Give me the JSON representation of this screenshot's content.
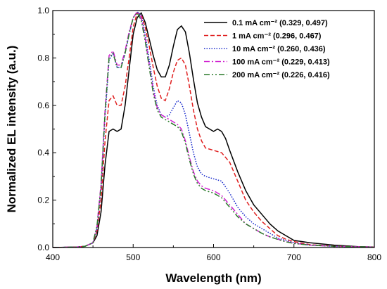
{
  "chart_data": {
    "type": "line",
    "xlabel": "Wavelength (nm)",
    "ylabel": "Normalized EL intensity (a.u.)",
    "xlim": [
      400,
      800
    ],
    "ylim": [
      0,
      1.0
    ],
    "xticks": [
      "400",
      "500",
      "600",
      "700",
      "800"
    ],
    "yticks": [
      "0.0",
      "0.2",
      "0.4",
      "0.6",
      "0.8",
      "1.0"
    ],
    "grid": false,
    "legend_position": "top-right",
    "series": [
      {
        "name": "0.1  mA cm⁻² (0.329, 0.497)",
        "color": "#000000",
        "dash": "solid",
        "points": [
          [
            400,
            0
          ],
          [
            430,
            0.002
          ],
          [
            440,
            0.005
          ],
          [
            450,
            0.02
          ],
          [
            455,
            0.05
          ],
          [
            460,
            0.15
          ],
          [
            465,
            0.35
          ],
          [
            470,
            0.49
          ],
          [
            475,
            0.5
          ],
          [
            480,
            0.49
          ],
          [
            485,
            0.5
          ],
          [
            490,
            0.6
          ],
          [
            495,
            0.75
          ],
          [
            500,
            0.9
          ],
          [
            505,
            0.97
          ],
          [
            510,
            0.99
          ],
          [
            515,
            0.95
          ],
          [
            520,
            0.88
          ],
          [
            525,
            0.81
          ],
          [
            530,
            0.75
          ],
          [
            535,
            0.72
          ],
          [
            540,
            0.72
          ],
          [
            545,
            0.77
          ],
          [
            550,
            0.85
          ],
          [
            555,
            0.92
          ],
          [
            560,
            0.935
          ],
          [
            565,
            0.91
          ],
          [
            570,
            0.82
          ],
          [
            575,
            0.71
          ],
          [
            580,
            0.61
          ],
          [
            585,
            0.55
          ],
          [
            590,
            0.51
          ],
          [
            600,
            0.49
          ],
          [
            605,
            0.5
          ],
          [
            610,
            0.49
          ],
          [
            615,
            0.46
          ],
          [
            620,
            0.41
          ],
          [
            630,
            0.32
          ],
          [
            640,
            0.24
          ],
          [
            650,
            0.18
          ],
          [
            660,
            0.14
          ],
          [
            670,
            0.1
          ],
          [
            680,
            0.07
          ],
          [
            690,
            0.05
          ],
          [
            700,
            0.03
          ],
          [
            720,
            0.02
          ],
          [
            750,
            0.01
          ],
          [
            780,
            0.004
          ],
          [
            800,
            0.002
          ]
        ]
      },
      {
        "name": "1   mA cm⁻² (0.296, 0.467)",
        "color": "#e02020",
        "dash": "dashed",
        "points": [
          [
            400,
            0
          ],
          [
            430,
            0.002
          ],
          [
            440,
            0.005
          ],
          [
            450,
            0.02
          ],
          [
            455,
            0.07
          ],
          [
            460,
            0.2
          ],
          [
            465,
            0.45
          ],
          [
            470,
            0.62
          ],
          [
            475,
            0.64
          ],
          [
            480,
            0.6
          ],
          [
            485,
            0.6
          ],
          [
            490,
            0.68
          ],
          [
            495,
            0.8
          ],
          [
            500,
            0.93
          ],
          [
            505,
            0.99
          ],
          [
            510,
            0.985
          ],
          [
            515,
            0.93
          ],
          [
            520,
            0.85
          ],
          [
            525,
            0.76
          ],
          [
            530,
            0.68
          ],
          [
            535,
            0.63
          ],
          [
            540,
            0.62
          ],
          [
            545,
            0.67
          ],
          [
            550,
            0.74
          ],
          [
            555,
            0.79
          ],
          [
            560,
            0.8
          ],
          [
            565,
            0.77
          ],
          [
            570,
            0.68
          ],
          [
            575,
            0.58
          ],
          [
            580,
            0.5
          ],
          [
            585,
            0.45
          ],
          [
            590,
            0.42
          ],
          [
            600,
            0.41
          ],
          [
            610,
            0.4
          ],
          [
            620,
            0.36
          ],
          [
            630,
            0.28
          ],
          [
            640,
            0.2
          ],
          [
            650,
            0.15
          ],
          [
            660,
            0.11
          ],
          [
            670,
            0.08
          ],
          [
            680,
            0.05
          ],
          [
            690,
            0.035
          ],
          [
            700,
            0.025
          ],
          [
            720,
            0.012
          ],
          [
            750,
            0.006
          ],
          [
            780,
            0.003
          ],
          [
            800,
            0.002
          ]
        ]
      },
      {
        "name": "10  mA cm⁻² (0.260, 0.436)",
        "color": "#1a2ccc",
        "dash": "dotted",
        "points": [
          [
            400,
            0
          ],
          [
            430,
            0.002
          ],
          [
            440,
            0.005
          ],
          [
            450,
            0.02
          ],
          [
            455,
            0.08
          ],
          [
            460,
            0.25
          ],
          [
            465,
            0.55
          ],
          [
            470,
            0.79
          ],
          [
            475,
            0.82
          ],
          [
            480,
            0.76
          ],
          [
            485,
            0.76
          ],
          [
            490,
            0.82
          ],
          [
            495,
            0.9
          ],
          [
            500,
            0.97
          ],
          [
            505,
            0.995
          ],
          [
            510,
            0.98
          ],
          [
            515,
            0.9
          ],
          [
            520,
            0.79
          ],
          [
            525,
            0.68
          ],
          [
            530,
            0.6
          ],
          [
            535,
            0.56
          ],
          [
            540,
            0.55
          ],
          [
            545,
            0.56
          ],
          [
            550,
            0.59
          ],
          [
            555,
            0.62
          ],
          [
            560,
            0.61
          ],
          [
            565,
            0.56
          ],
          [
            570,
            0.48
          ],
          [
            575,
            0.4
          ],
          [
            580,
            0.34
          ],
          [
            585,
            0.31
          ],
          [
            590,
            0.3
          ],
          [
            600,
            0.29
          ],
          [
            610,
            0.28
          ],
          [
            620,
            0.23
          ],
          [
            630,
            0.17
          ],
          [
            640,
            0.13
          ],
          [
            650,
            0.1
          ],
          [
            660,
            0.08
          ],
          [
            670,
            0.06
          ],
          [
            680,
            0.04
          ],
          [
            690,
            0.03
          ],
          [
            700,
            0.02
          ],
          [
            720,
            0.01
          ],
          [
            750,
            0.005
          ],
          [
            780,
            0.003
          ],
          [
            800,
            0.002
          ]
        ]
      },
      {
        "name": "100 mA cm⁻² (0.229, 0.413)",
        "color": "#d020d0",
        "dash": "dashdot",
        "points": [
          [
            400,
            0
          ],
          [
            430,
            0.002
          ],
          [
            440,
            0.005
          ],
          [
            450,
            0.02
          ],
          [
            455,
            0.09
          ],
          [
            460,
            0.27
          ],
          [
            465,
            0.58
          ],
          [
            470,
            0.81
          ],
          [
            475,
            0.83
          ],
          [
            480,
            0.77
          ],
          [
            485,
            0.77
          ],
          [
            490,
            0.83
          ],
          [
            495,
            0.91
          ],
          [
            500,
            0.97
          ],
          [
            505,
            0.995
          ],
          [
            510,
            0.97
          ],
          [
            515,
            0.88
          ],
          [
            520,
            0.77
          ],
          [
            525,
            0.66
          ],
          [
            530,
            0.59
          ],
          [
            535,
            0.56
          ],
          [
            540,
            0.55
          ],
          [
            545,
            0.54
          ],
          [
            550,
            0.53
          ],
          [
            555,
            0.52
          ],
          [
            560,
            0.5
          ],
          [
            565,
            0.45
          ],
          [
            570,
            0.38
          ],
          [
            575,
            0.32
          ],
          [
            580,
            0.28
          ],
          [
            585,
            0.26
          ],
          [
            590,
            0.25
          ],
          [
            600,
            0.24
          ],
          [
            610,
            0.22
          ],
          [
            620,
            0.18
          ],
          [
            630,
            0.14
          ],
          [
            640,
            0.1
          ],
          [
            650,
            0.08
          ],
          [
            660,
            0.06
          ],
          [
            670,
            0.045
          ],
          [
            680,
            0.035
          ],
          [
            690,
            0.025
          ],
          [
            700,
            0.018
          ],
          [
            720,
            0.01
          ],
          [
            750,
            0.005
          ],
          [
            780,
            0.003
          ],
          [
            800,
            0.002
          ]
        ]
      },
      {
        "name": "200 mA cm⁻² (0.226, 0.416)",
        "color": "#2a7a2a",
        "dash": "dashdotdot",
        "points": [
          [
            400,
            0
          ],
          [
            430,
            0.002
          ],
          [
            440,
            0.005
          ],
          [
            450,
            0.02
          ],
          [
            455,
            0.09
          ],
          [
            460,
            0.26
          ],
          [
            465,
            0.57
          ],
          [
            470,
            0.8
          ],
          [
            475,
            0.82
          ],
          [
            480,
            0.76
          ],
          [
            485,
            0.76
          ],
          [
            490,
            0.82
          ],
          [
            495,
            0.9
          ],
          [
            500,
            0.97
          ],
          [
            505,
            0.99
          ],
          [
            510,
            0.96
          ],
          [
            515,
            0.87
          ],
          [
            520,
            0.76
          ],
          [
            525,
            0.65
          ],
          [
            530,
            0.58
          ],
          [
            535,
            0.55
          ],
          [
            540,
            0.54
          ],
          [
            545,
            0.53
          ],
          [
            550,
            0.52
          ],
          [
            555,
            0.51
          ],
          [
            560,
            0.49
          ],
          [
            565,
            0.44
          ],
          [
            570,
            0.37
          ],
          [
            575,
            0.31
          ],
          [
            580,
            0.27
          ],
          [
            585,
            0.25
          ],
          [
            590,
            0.24
          ],
          [
            600,
            0.23
          ],
          [
            610,
            0.21
          ],
          [
            620,
            0.17
          ],
          [
            630,
            0.13
          ],
          [
            640,
            0.1
          ],
          [
            650,
            0.08
          ],
          [
            660,
            0.06
          ],
          [
            670,
            0.045
          ],
          [
            680,
            0.034
          ],
          [
            690,
            0.024
          ],
          [
            700,
            0.017
          ],
          [
            720,
            0.01
          ],
          [
            750,
            0.005
          ],
          [
            780,
            0.003
          ],
          [
            800,
            0.002
          ]
        ]
      }
    ]
  }
}
